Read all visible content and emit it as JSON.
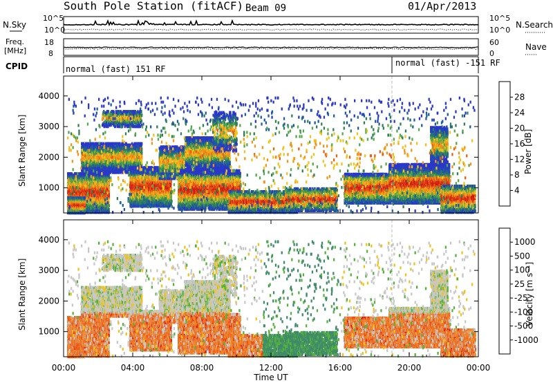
{
  "header": {
    "station": "South Pole Station (fitACF)",
    "beam": "Beam 09",
    "date": "01/Apr/2013"
  },
  "top_panels": {
    "noise": {
      "left_label": "N.Sky",
      "right_label": "N.Search",
      "left_ticks": [
        "10^5",
        "10^0"
      ],
      "right_ticks": [
        "10^5",
        "10^0"
      ]
    },
    "freq": {
      "left_label_line1": "Freq.",
      "left_label_line2": "[MHz]",
      "left_ticks": [
        "18",
        "8"
      ],
      "right_label": "Nave",
      "right_ticks": [
        "60",
        "0"
      ]
    },
    "cpid": {
      "label": "CPID",
      "segments": [
        {
          "start_hour": 0,
          "text": "normal (fast) 151 RF"
        },
        {
          "start_hour": 19,
          "text": "normal (fast) -151 RF"
        }
      ]
    }
  },
  "chart_data": [
    {
      "type": "heatmap",
      "name": "power",
      "ylabel": "Slant Range [km]",
      "ylim": [
        180,
        4650
      ],
      "yticks": [
        1000,
        2000,
        3000,
        4000
      ],
      "xlim": [
        0,
        24
      ],
      "colorbar": {
        "label": "Power [dB]",
        "ticks": [
          4,
          8,
          12,
          16,
          20,
          24,
          28
        ],
        "colors": [
          "#2a38c8",
          "#1f5c9e",
          "#2e7f56",
          "#53a84a",
          "#f0c21a",
          "#f2941c",
          "#e85f14",
          "#d01c14"
        ]
      }
    },
    {
      "type": "heatmap",
      "name": "velocity",
      "ylabel": "Slant Range [km]",
      "ylim": [
        180,
        4650
      ],
      "yticks": [
        1000,
        2000,
        3000,
        4000
      ],
      "xlim": [
        0,
        24
      ],
      "xlabel": "Time UT",
      "xticks": [
        "00:00",
        "04:00",
        "08:00",
        "12:00",
        "16:00",
        "20:00",
        "00:00"
      ],
      "colorbar": {
        "label": "Velocity [m s⁻¹]",
        "ticks": [
          "1000",
          "500",
          "100",
          "25",
          "-25",
          "-100",
          "-500",
          "-1000"
        ],
        "colors": [
          "#2a38c8",
          "#2a6aa0",
          "#3f8a6a",
          "#55b23c",
          "#c8c8c8",
          "#f0c21a",
          "#f08a28",
          "#ef6c1e",
          "#e01a16"
        ]
      }
    }
  ]
}
